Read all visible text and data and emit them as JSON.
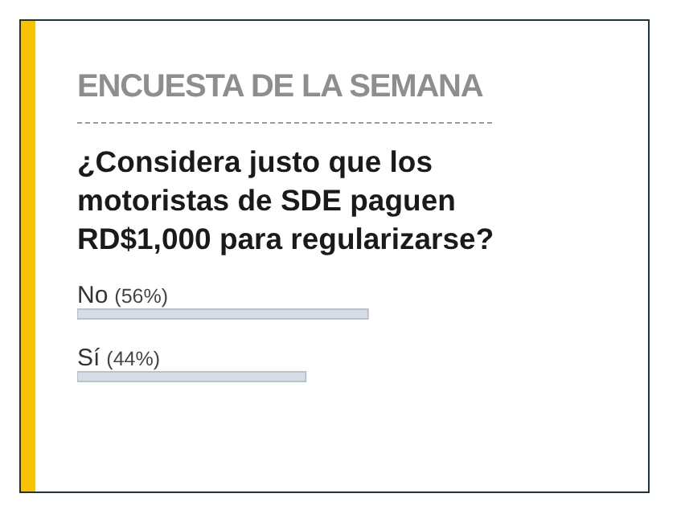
{
  "chart_data": {
    "type": "bar",
    "orientation": "horizontal",
    "title": "ENCUESTA DE LA SEMANA",
    "subtitle": "¿Considera justo que los motoristas de SDE paguen RD$1,000 para regularizarse?",
    "categories": [
      "No",
      "Sí"
    ],
    "values": [
      56,
      44
    ],
    "value_labels": [
      "(56%)",
      "(44%)"
    ],
    "color": "#d6dde6"
  }
}
